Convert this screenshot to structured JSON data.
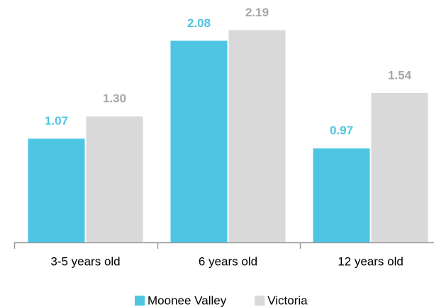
{
  "chart_data": {
    "type": "bar",
    "categories": [
      "3-5 years old",
      "6 years old",
      "12 years old"
    ],
    "series": [
      {
        "name": "Moonee Valley",
        "color": "#4dc5e3",
        "label_color": "#4dc5e3",
        "values": [
          1.07,
          2.08,
          0.97
        ],
        "value_labels": [
          "1.07",
          "2.08",
          "0.97"
        ]
      },
      {
        "name": "Victoria",
        "color": "#d9d9d9",
        "label_color": "#a6a6a6",
        "values": [
          1.3,
          2.19,
          1.54
        ],
        "value_labels": [
          "1.30",
          "2.19",
          "1.54"
        ]
      }
    ],
    "ylim": [
      0,
      2.2
    ],
    "legend": "bottom"
  }
}
